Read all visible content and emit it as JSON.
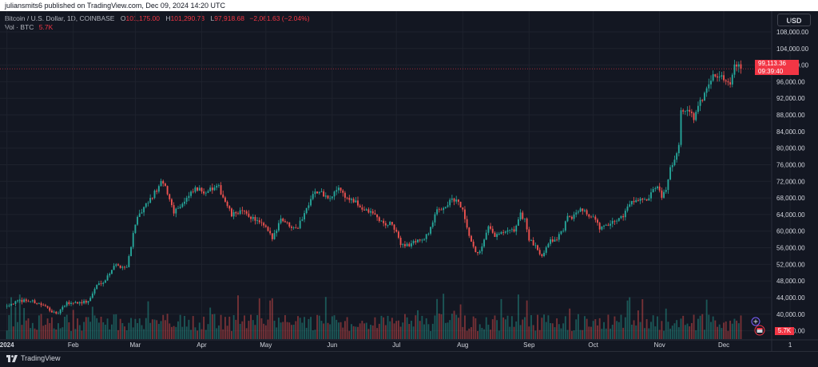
{
  "header": {
    "published": "juliansmits6 published on TradingView.com, Dec 09, 2024 14:20 UTC"
  },
  "legend": {
    "symbol": "Bitcoin / U.S. Dollar, 1D, COINBASE",
    "open_key": "O",
    "open": "101,175.00",
    "high_key": "H",
    "high": "101,290.73",
    "low_key": "L",
    "low": "97,918.68",
    "change": "−2,061.63 (−2.04%)",
    "volume_label": "Vol · BTC",
    "volume_value": "5.7K"
  },
  "currency_button": "USD",
  "price_tag": {
    "price": "99,113.36",
    "countdown": "09:39:40"
  },
  "volume_tag": "5.7K",
  "brand": "TradingView",
  "colors": {
    "up": "#26a69a",
    "down": "#ef5350",
    "background": "#131722",
    "accent": "#f23645"
  },
  "chart_data": {
    "type": "candlestick",
    "symbol": "BTCUSD",
    "interval": "1D",
    "y_ticks": [
      36000,
      40000,
      44000,
      48000,
      52000,
      56000,
      60000,
      64000,
      68000,
      72000,
      76000,
      80000,
      84000,
      88000,
      92000,
      96000,
      100000,
      104000,
      108000
    ],
    "y_tick_labels": [
      "36,000.00",
      "40,000.00",
      "44,000.00",
      "48,000.00",
      "52,000.00",
      "56,000.00",
      "60,000.00",
      "64,000.00",
      "68,000.00",
      "72,000.00",
      "76,000.00",
      "80,000.00",
      "84,000.00",
      "88,000.00",
      "92,000.00",
      "96,000.00",
      "100,000.00",
      "104,000.00",
      "108,000.00"
    ],
    "x_tick_labels": [
      "2024",
      "Feb",
      "Mar",
      "Apr",
      "May",
      "Jun",
      "Jul",
      "Aug",
      "Sep",
      "Oct",
      "Nov",
      "Dec",
      "1"
    ],
    "x_tick_days": [
      0,
      31,
      60,
      91,
      121,
      152,
      182,
      213,
      244,
      274,
      305,
      335,
      366
    ],
    "close_path": [
      [
        0,
        42300
      ],
      [
        8,
        43400
      ],
      [
        14,
        42800
      ],
      [
        20,
        41200
      ],
      [
        23,
        39800
      ],
      [
        28,
        42600
      ],
      [
        31,
        42800
      ],
      [
        38,
        43000
      ],
      [
        42,
        47000
      ],
      [
        46,
        48300
      ],
      [
        50,
        51800
      ],
      [
        56,
        51300
      ],
      [
        60,
        62000
      ],
      [
        64,
        65500
      ],
      [
        68,
        68400
      ],
      [
        72,
        71500
      ],
      [
        74,
        70600
      ],
      [
        78,
        64800
      ],
      [
        83,
        67200
      ],
      [
        88,
        70100
      ],
      [
        92,
        69600
      ],
      [
        99,
        70500
      ],
      [
        105,
        63800
      ],
      [
        109,
        64900
      ],
      [
        116,
        62800
      ],
      [
        121,
        60700
      ],
      [
        124,
        58200
      ],
      [
        128,
        63200
      ],
      [
        132,
        61400
      ],
      [
        136,
        61000
      ],
      [
        140,
        65500
      ],
      [
        143,
        69400
      ],
      [
        147,
        69100
      ],
      [
        151,
        67600
      ],
      [
        155,
        70700
      ],
      [
        158,
        68300
      ],
      [
        163,
        66800
      ],
      [
        167,
        65000
      ],
      [
        171,
        64300
      ],
      [
        176,
        61700
      ],
      [
        180,
        61700
      ],
      [
        184,
        57000
      ],
      [
        188,
        56600
      ],
      [
        192,
        58000
      ],
      [
        195,
        57800
      ],
      [
        198,
        60900
      ],
      [
        201,
        64900
      ],
      [
        205,
        66100
      ],
      [
        208,
        67600
      ],
      [
        211,
        66900
      ],
      [
        213,
        64700
      ],
      [
        215,
        60400
      ],
      [
        218,
        55900
      ],
      [
        219,
        54500
      ],
      [
        222,
        56000
      ],
      [
        225,
        60800
      ],
      [
        228,
        58800
      ],
      [
        231,
        59400
      ],
      [
        237,
        60200
      ],
      [
        240,
        64000
      ],
      [
        242,
        62900
      ],
      [
        244,
        58000
      ],
      [
        247,
        56100
      ],
      [
        250,
        54200
      ],
      [
        253,
        57400
      ],
      [
        257,
        58200
      ],
      [
        260,
        60600
      ],
      [
        262,
        63100
      ],
      [
        265,
        63600
      ],
      [
        268,
        66000
      ],
      [
        271,
        64200
      ],
      [
        274,
        63300
      ],
      [
        277,
        60800
      ],
      [
        281,
        61300
      ],
      [
        285,
        62700
      ],
      [
        288,
        63900
      ],
      [
        292,
        67400
      ],
      [
        296,
        67800
      ],
      [
        299,
        67000
      ],
      [
        302,
        69700
      ],
      [
        304,
        70200
      ],
      [
        306,
        68300
      ],
      [
        308,
        69400
      ],
      [
        310,
        75600
      ],
      [
        312,
        76600
      ],
      [
        314,
        81500
      ],
      [
        315,
        88700
      ],
      [
        318,
        89800
      ],
      [
        321,
        87100
      ],
      [
        324,
        90900
      ],
      [
        327,
        94300
      ],
      [
        330,
        98300
      ],
      [
        332,
        97800
      ],
      [
        335,
        96400
      ],
      [
        338,
        96000
      ],
      [
        340,
        99900
      ],
      [
        342,
        101100
      ],
      [
        343,
        99113
      ]
    ],
    "last_price": 99113.36
  }
}
